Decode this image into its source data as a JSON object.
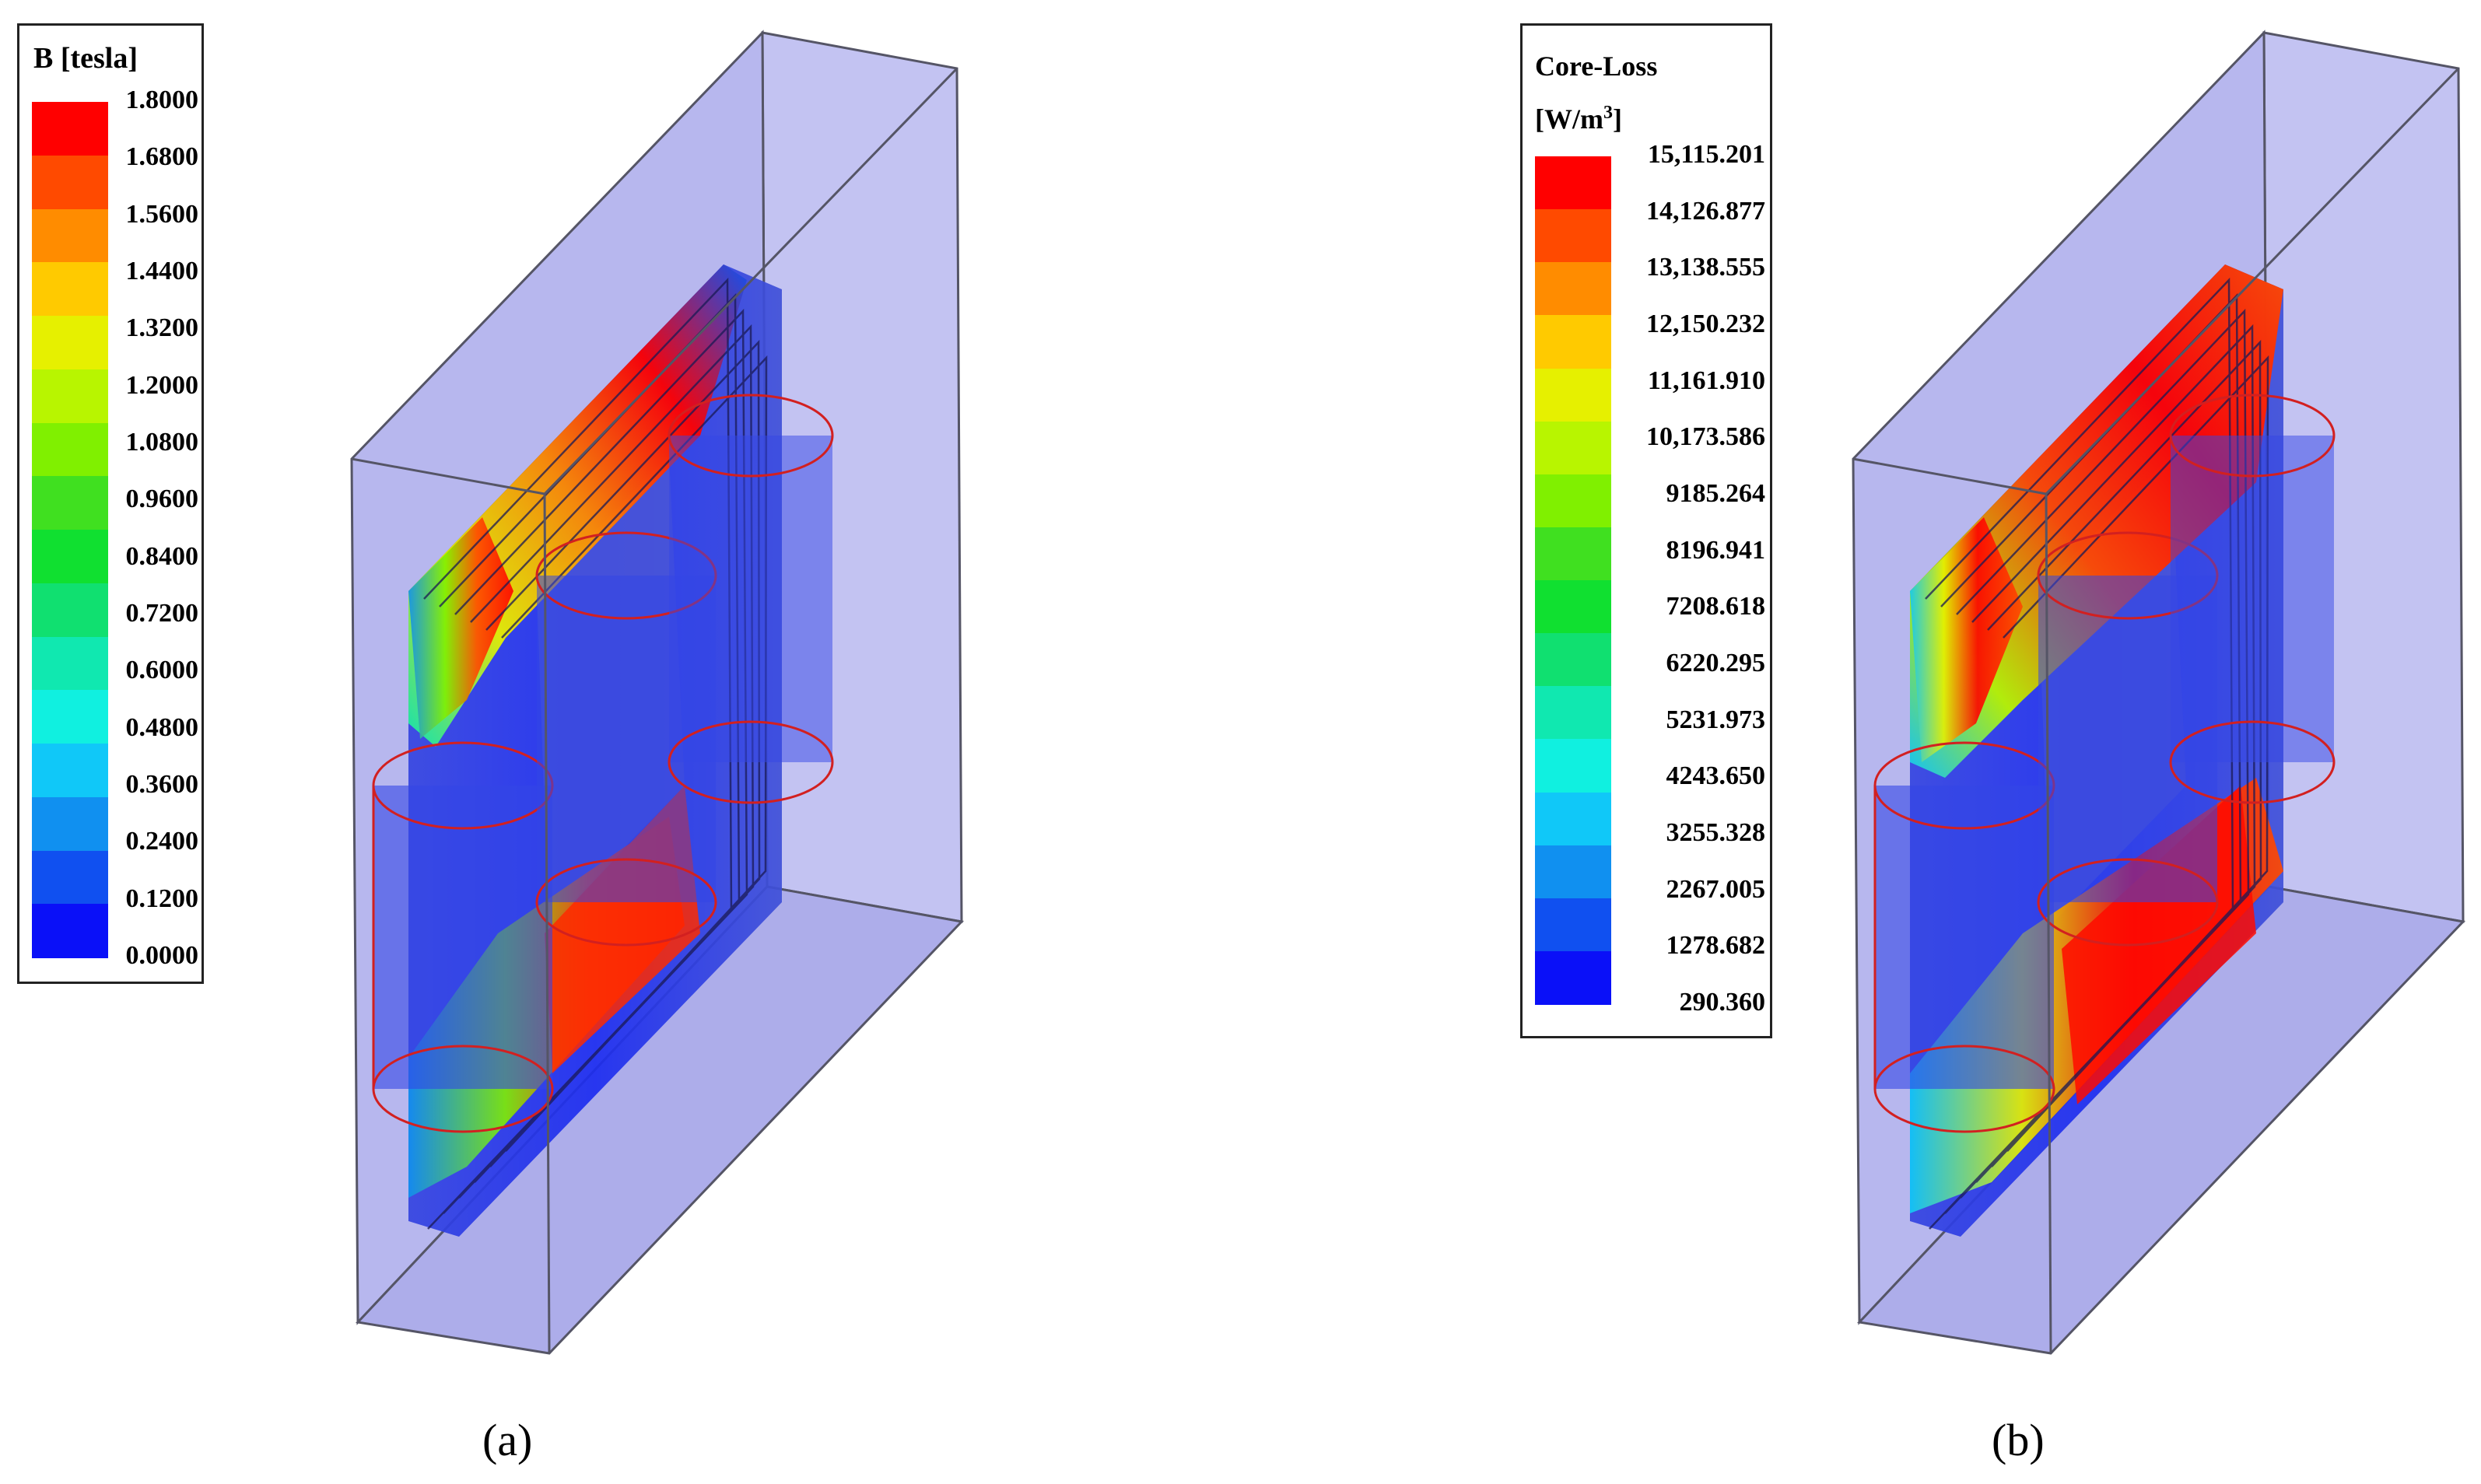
{
  "panel_a": {
    "legend": {
      "title": "B [tesla]",
      "ticks": [
        "1.8000",
        "1.6800",
        "1.5600",
        "1.4400",
        "1.3200",
        "1.2000",
        "1.0800",
        "0.9600",
        "0.8400",
        "0.7200",
        "0.6000",
        "0.4800",
        "0.3600",
        "0.2400",
        "0.1200",
        "0.0000"
      ],
      "colors": [
        "#ff0000",
        "#ff4a00",
        "#ff8c00",
        "#ffca00",
        "#e6f000",
        "#b8f500",
        "#80f000",
        "#40e020",
        "#10e030",
        "#10e070",
        "#10e8b0",
        "#10f0e0",
        "#10c8f8",
        "#1090f0",
        "#1050f0",
        "#0a10f8"
      ]
    },
    "caption": "(a)"
  },
  "panel_b": {
    "legend": {
      "title_line1": "Core-Loss",
      "title_unit": "[W/m",
      "title_sup": "3",
      "title_close": "]",
      "ticks": [
        "15,115.201",
        "14,126.877",
        "13,138.555",
        "12,150.232",
        "11,161.910",
        "10,173.586",
        "9185.264",
        "8196.941",
        "7208.618",
        "6220.295",
        "5231.973",
        "4243.650",
        "3255.328",
        "2267.005",
        "1278.682",
        "290.360"
      ],
      "colors": [
        "#ff0000",
        "#ff4a00",
        "#ff8c00",
        "#ffca00",
        "#e6f000",
        "#b8f500",
        "#80f000",
        "#40e020",
        "#10e030",
        "#10e070",
        "#10e8b0",
        "#10f0e0",
        "#10c8f8",
        "#1090f0",
        "#1050f0",
        "#0a10f8"
      ]
    },
    "caption": "(b)"
  },
  "colors": {
    "box_fill": "#b7b7ee",
    "box_edge": "#555566",
    "core_blue": "#2b3ae8",
    "coil_red": "#d22020"
  }
}
